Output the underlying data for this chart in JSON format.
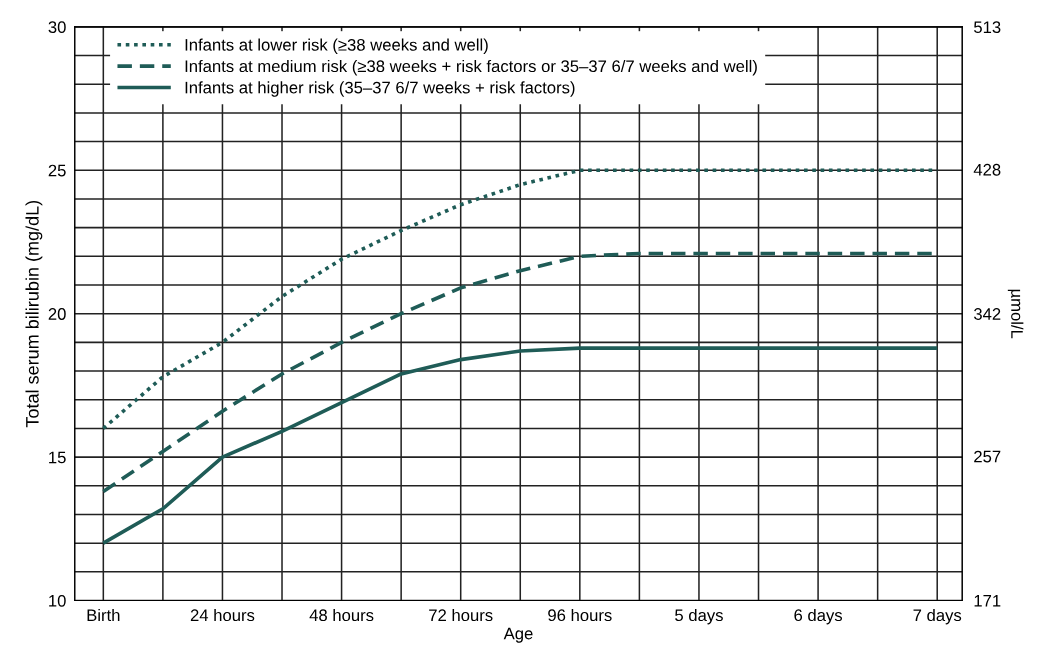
{
  "chart_data": {
    "type": "line",
    "xlabel": "Age",
    "ylabel": "Total serum bilirubin (mg/dL)",
    "y2label": "µmol/L",
    "categories": [
      "Birth",
      null,
      "24 hours",
      null,
      "48 hours",
      null,
      "72 hours",
      null,
      "96 hours",
      null,
      "5 days",
      null,
      "6 days",
      null,
      "7 days"
    ],
    "ylim": [
      10,
      30
    ],
    "y2lim": [
      171,
      513
    ],
    "yticks": [
      10,
      {
        "value": 11,
        "label": null
      },
      {
        "value": 12,
        "label": null
      },
      {
        "value": 13,
        "label": null
      },
      {
        "value": 14,
        "label": null
      },
      15,
      {
        "value": 16,
        "label": null
      },
      {
        "value": 17,
        "label": null
      },
      {
        "value": 18,
        "label": null
      },
      {
        "value": 19,
        "label": null
      },
      20,
      {
        "value": 21,
        "label": null
      },
      {
        "value": 22,
        "label": null
      },
      {
        "value": 23,
        "label": null
      },
      {
        "value": 24,
        "label": null
      },
      25,
      {
        "value": 26,
        "label": null
      },
      {
        "value": 27,
        "label": null
      },
      {
        "value": 28,
        "label": null
      },
      {
        "value": 29,
        "label": null
      },
      30
    ],
    "y2ticks": [
      171,
      257,
      342,
      428,
      513
    ],
    "grid": true,
    "legend": "top left",
    "marker": "none",
    "series": [
      {
        "name": "Infants at lower risk (≥38 weeks and well)",
        "color": "#1f5c57",
        "line_style": "dotted",
        "values": [
          16.0,
          17.8,
          19.0,
          20.6,
          21.9,
          22.9,
          23.8,
          24.5,
          25.0,
          25.0,
          25.0,
          25.0,
          25.0,
          25.0,
          25.0
        ]
      },
      {
        "name": "Infants at medium risk (≥38 weeks + risk factors or 35–37 6/7 weeks and well)",
        "color": "#1f5c57",
        "line_style": "dashed",
        "values": [
          13.8,
          15.2,
          16.6,
          17.9,
          19.0,
          20.0,
          20.9,
          21.5,
          22.0,
          22.1,
          22.1,
          22.1,
          22.1,
          22.1,
          22.1
        ]
      },
      {
        "name": "Infants at higher risk (35–37 6/7 weeks + risk factors)",
        "color": "#1f5c57",
        "line_style": "solid",
        "values": [
          12.0,
          13.2,
          15.0,
          15.9,
          16.9,
          17.9,
          18.4,
          18.7,
          18.8,
          18.8,
          18.8,
          18.8,
          18.8,
          18.8,
          18.8
        ]
      }
    ]
  }
}
